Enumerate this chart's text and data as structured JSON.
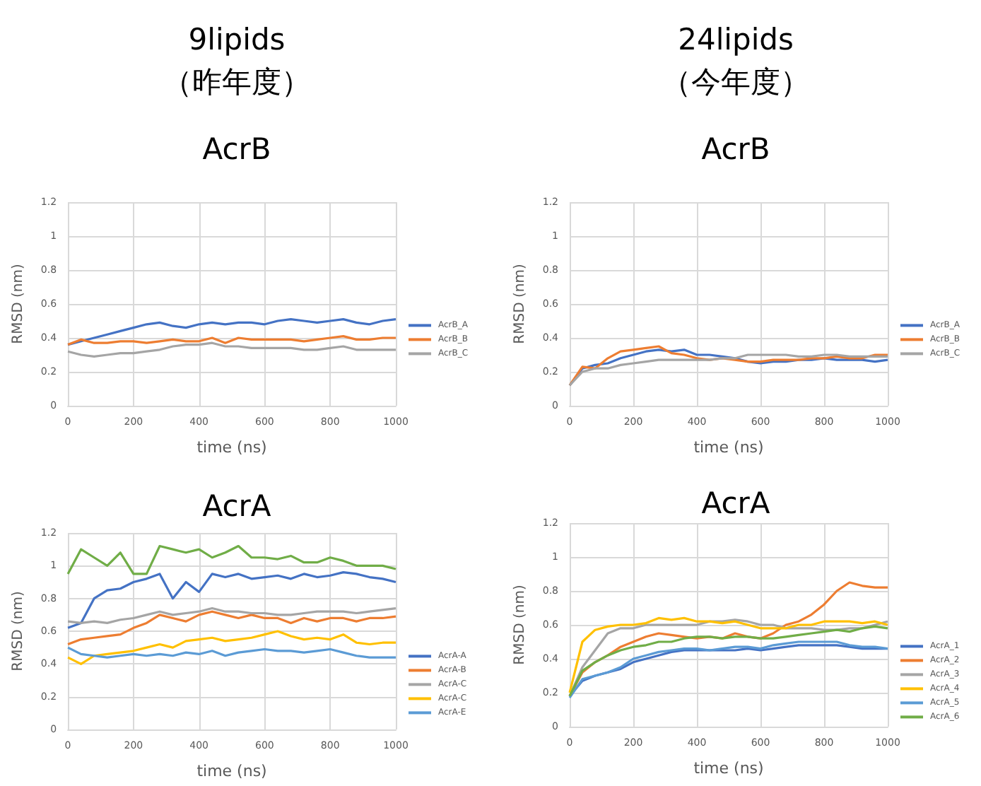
{
  "chart_data": [
    {
      "type": "line",
      "title": "9lipids\n（昨年度）",
      "subtitle": "AcrB",
      "xlabel": "time (ns)",
      "ylabel": "RMSD (nm)",
      "x": [
        0,
        40,
        80,
        120,
        160,
        200,
        240,
        280,
        320,
        360,
        400,
        440,
        480,
        520,
        560,
        600,
        640,
        680,
        720,
        760,
        800,
        840,
        880,
        920,
        960,
        1000
      ],
      "xlim": [
        0,
        1000
      ],
      "xticks": [
        0,
        200,
        400,
        600,
        800,
        1000
      ],
      "ylim": [
        0,
        1.2
      ],
      "yticks": [
        0,
        0.2,
        0.4,
        0.6,
        0.8,
        1,
        1.2
      ],
      "grid": true,
      "legend": "right",
      "marker": "none",
      "line_style": "solid",
      "series": [
        {
          "name": "AcrB_A",
          "color": "#4472c4",
          "values": [
            0.36,
            0.38,
            0.4,
            0.42,
            0.44,
            0.46,
            0.48,
            0.49,
            0.47,
            0.46,
            0.48,
            0.49,
            0.48,
            0.49,
            0.49,
            0.48,
            0.5,
            0.51,
            0.5,
            0.49,
            0.5,
            0.51,
            0.49,
            0.48,
            0.5,
            0.51
          ]
        },
        {
          "name": "AcrB_B",
          "color": "#ed7d31",
          "values": [
            0.36,
            0.39,
            0.37,
            0.37,
            0.38,
            0.38,
            0.37,
            0.38,
            0.39,
            0.38,
            0.38,
            0.4,
            0.37,
            0.4,
            0.39,
            0.39,
            0.39,
            0.39,
            0.38,
            0.39,
            0.4,
            0.41,
            0.39,
            0.39,
            0.4,
            0.4
          ]
        },
        {
          "name": "AcrB_C",
          "color": "#a5a5a5",
          "values": [
            0.32,
            0.3,
            0.29,
            0.3,
            0.31,
            0.31,
            0.32,
            0.33,
            0.35,
            0.36,
            0.36,
            0.37,
            0.35,
            0.35,
            0.34,
            0.34,
            0.34,
            0.34,
            0.33,
            0.33,
            0.34,
            0.35,
            0.33,
            0.33,
            0.33,
            0.33
          ]
        }
      ]
    },
    {
      "type": "line",
      "title": "24lipids\n（今年度）",
      "subtitle": "AcrB",
      "xlabel": "time (ns)",
      "ylabel": "RMSD (nm)",
      "x": [
        0,
        40,
        80,
        120,
        160,
        200,
        240,
        280,
        320,
        360,
        400,
        440,
        480,
        520,
        560,
        600,
        640,
        680,
        720,
        760,
        800,
        840,
        880,
        920,
        960,
        1000
      ],
      "xlim": [
        0,
        1000
      ],
      "xticks": [
        0,
        200,
        400,
        600,
        800,
        1000
      ],
      "ylim": [
        0,
        1.2
      ],
      "yticks": [
        0,
        0.2,
        0.4,
        0.6,
        0.8,
        1,
        1.2
      ],
      "grid": true,
      "legend": "right",
      "marker": "none",
      "line_style": "solid",
      "series": [
        {
          "name": "AcrB_A",
          "color": "#4472c4",
          "values": [
            0.12,
            0.22,
            0.24,
            0.25,
            0.28,
            0.3,
            0.32,
            0.33,
            0.32,
            0.33,
            0.3,
            0.3,
            0.29,
            0.28,
            0.26,
            0.25,
            0.26,
            0.26,
            0.27,
            0.27,
            0.28,
            0.27,
            0.27,
            0.27,
            0.26,
            0.27
          ]
        },
        {
          "name": "AcrB_B",
          "color": "#ed7d31",
          "values": [
            0.12,
            0.23,
            0.22,
            0.28,
            0.32,
            0.33,
            0.34,
            0.35,
            0.31,
            0.3,
            0.28,
            0.27,
            0.28,
            0.27,
            0.26,
            0.26,
            0.27,
            0.27,
            0.27,
            0.28,
            0.28,
            0.29,
            0.28,
            0.28,
            0.3,
            0.3
          ]
        },
        {
          "name": "AcrB_C",
          "color": "#a5a5a5",
          "values": [
            0.12,
            0.2,
            0.22,
            0.22,
            0.24,
            0.25,
            0.26,
            0.27,
            0.27,
            0.27,
            0.27,
            0.27,
            0.28,
            0.28,
            0.3,
            0.3,
            0.3,
            0.3,
            0.29,
            0.29,
            0.3,
            0.3,
            0.29,
            0.29,
            0.29,
            0.29
          ]
        }
      ]
    },
    {
      "type": "line",
      "title": "AcrA",
      "xlabel": "time (ns)",
      "ylabel": "RMSD (nm)",
      "x": [
        0,
        40,
        80,
        120,
        160,
        200,
        240,
        280,
        320,
        360,
        400,
        440,
        480,
        520,
        560,
        600,
        640,
        680,
        720,
        760,
        800,
        840,
        880,
        920,
        960,
        1000
      ],
      "xlim": [
        0,
        1000
      ],
      "xticks": [
        0,
        200,
        400,
        600,
        800,
        1000
      ],
      "ylim": [
        0,
        1.2
      ],
      "yticks": [
        0,
        0.2,
        0.4,
        0.6,
        0.8,
        1,
        1.2
      ],
      "grid": true,
      "legend": "right",
      "marker": "none",
      "line_style": "solid",
      "series": [
        {
          "name": "AcrA-A",
          "color": "#4472c4",
          "values": [
            0.62,
            0.65,
            0.8,
            0.85,
            0.86,
            0.9,
            0.92,
            0.95,
            0.8,
            0.9,
            0.84,
            0.95,
            0.93,
            0.95,
            0.92,
            0.93,
            0.94,
            0.92,
            0.95,
            0.93,
            0.94,
            0.96,
            0.95,
            0.93,
            0.92,
            0.9
          ]
        },
        {
          "name": "AcrA-B",
          "color": "#ed7d31",
          "values": [
            0.52,
            0.55,
            0.56,
            0.57,
            0.58,
            0.62,
            0.65,
            0.7,
            0.68,
            0.66,
            0.7,
            0.72,
            0.7,
            0.68,
            0.7,
            0.68,
            0.68,
            0.65,
            0.68,
            0.66,
            0.68,
            0.68,
            0.66,
            0.68,
            0.68,
            0.69
          ]
        },
        {
          "name": "AcrA-C",
          "color": "#a5a5a5",
          "values": [
            0.66,
            0.65,
            0.66,
            0.65,
            0.67,
            0.68,
            0.7,
            0.72,
            0.7,
            0.71,
            0.72,
            0.74,
            0.72,
            0.72,
            0.71,
            0.71,
            0.7,
            0.7,
            0.71,
            0.72,
            0.72,
            0.72,
            0.71,
            0.72,
            0.73,
            0.74
          ]
        },
        {
          "name": "AcrA-C",
          "color": "#ffc000",
          "values": [
            0.44,
            0.4,
            0.45,
            0.46,
            0.47,
            0.48,
            0.5,
            0.52,
            0.5,
            0.54,
            0.55,
            0.56,
            0.54,
            0.55,
            0.56,
            0.58,
            0.6,
            0.57,
            0.55,
            0.56,
            0.55,
            0.58,
            0.53,
            0.52,
            0.53,
            0.53
          ]
        },
        {
          "name": "AcrA-E",
          "color": "#5b9bd5",
          "values": [
            0.5,
            0.46,
            0.45,
            0.44,
            0.45,
            0.46,
            0.45,
            0.46,
            0.45,
            0.47,
            0.46,
            0.48,
            0.45,
            0.47,
            0.48,
            0.49,
            0.48,
            0.48,
            0.47,
            0.48,
            0.49,
            0.47,
            0.45,
            0.44,
            0.44,
            0.44
          ]
        },
        {
          "color": "#70ad47",
          "values": [
            0.95,
            1.1,
            1.05,
            1.0,
            1.08,
            0.95,
            0.95,
            1.12,
            1.1,
            1.08,
            1.1,
            1.05,
            1.08,
            1.12,
            1.05,
            1.05,
            1.04,
            1.06,
            1.02,
            1.02,
            1.05,
            1.03,
            1.0,
            1.0,
            1.0,
            0.98
          ]
        }
      ]
    },
    {
      "type": "line",
      "title": "AcrA",
      "xlabel": "time (ns)",
      "ylabel": "RMSD (nm)",
      "x": [
        0,
        40,
        80,
        120,
        160,
        200,
        240,
        280,
        320,
        360,
        400,
        440,
        480,
        520,
        560,
        600,
        640,
        680,
        720,
        760,
        800,
        840,
        880,
        920,
        960,
        1000
      ],
      "xlim": [
        0,
        1000
      ],
      "xticks": [
        0,
        200,
        400,
        600,
        800,
        1000
      ],
      "ylim": [
        0,
        1.2
      ],
      "yticks": [
        0,
        0.2,
        0.4,
        0.6,
        0.8,
        1,
        1.2
      ],
      "grid": true,
      "legend": "right",
      "marker": "none",
      "line_style": "solid",
      "series": [
        {
          "name": "AcrA_1",
          "color": "#4472c4",
          "values": [
            0.18,
            0.27,
            0.3,
            0.32,
            0.34,
            0.38,
            0.4,
            0.42,
            0.44,
            0.45,
            0.45,
            0.45,
            0.45,
            0.45,
            0.46,
            0.45,
            0.46,
            0.47,
            0.48,
            0.48,
            0.48,
            0.48,
            0.47,
            0.46,
            0.46,
            0.46
          ]
        },
        {
          "name": "AcrA_2",
          "color": "#ed7d31",
          "values": [
            0.18,
            0.32,
            0.38,
            0.42,
            0.47,
            0.5,
            0.53,
            0.55,
            0.54,
            0.53,
            0.52,
            0.53,
            0.52,
            0.55,
            0.53,
            0.52,
            0.55,
            0.6,
            0.62,
            0.66,
            0.72,
            0.8,
            0.85,
            0.83,
            0.82,
            0.82
          ]
        },
        {
          "name": "AcrA_3",
          "color": "#a5a5a5",
          "values": [
            0.18,
            0.35,
            0.45,
            0.55,
            0.58,
            0.58,
            0.6,
            0.6,
            0.6,
            0.6,
            0.6,
            0.62,
            0.62,
            0.63,
            0.62,
            0.6,
            0.6,
            0.58,
            0.58,
            0.58,
            0.57,
            0.57,
            0.58,
            0.58,
            0.6,
            0.62
          ]
        },
        {
          "name": "AcrA_4",
          "color": "#ffc000",
          "values": [
            0.2,
            0.5,
            0.57,
            0.59,
            0.6,
            0.6,
            0.61,
            0.64,
            0.63,
            0.64,
            0.62,
            0.62,
            0.61,
            0.62,
            0.6,
            0.58,
            0.58,
            0.58,
            0.6,
            0.6,
            0.62,
            0.62,
            0.62,
            0.61,
            0.62,
            0.6
          ]
        },
        {
          "name": "AcrA_5",
          "color": "#5b9bd5",
          "values": [
            0.17,
            0.28,
            0.3,
            0.32,
            0.35,
            0.4,
            0.42,
            0.44,
            0.45,
            0.46,
            0.46,
            0.45,
            0.46,
            0.47,
            0.47,
            0.46,
            0.48,
            0.49,
            0.5,
            0.5,
            0.5,
            0.5,
            0.48,
            0.47,
            0.47,
            0.46
          ]
        },
        {
          "name": "AcrA_6",
          "color": "#70ad47",
          "values": [
            0.18,
            0.33,
            0.38,
            0.42,
            0.45,
            0.47,
            0.48,
            0.5,
            0.5,
            0.52,
            0.53,
            0.53,
            0.52,
            0.53,
            0.53,
            0.52,
            0.52,
            0.53,
            0.54,
            0.55,
            0.56,
            0.57,
            0.56,
            0.58,
            0.59,
            0.58
          ]
        }
      ]
    }
  ]
}
